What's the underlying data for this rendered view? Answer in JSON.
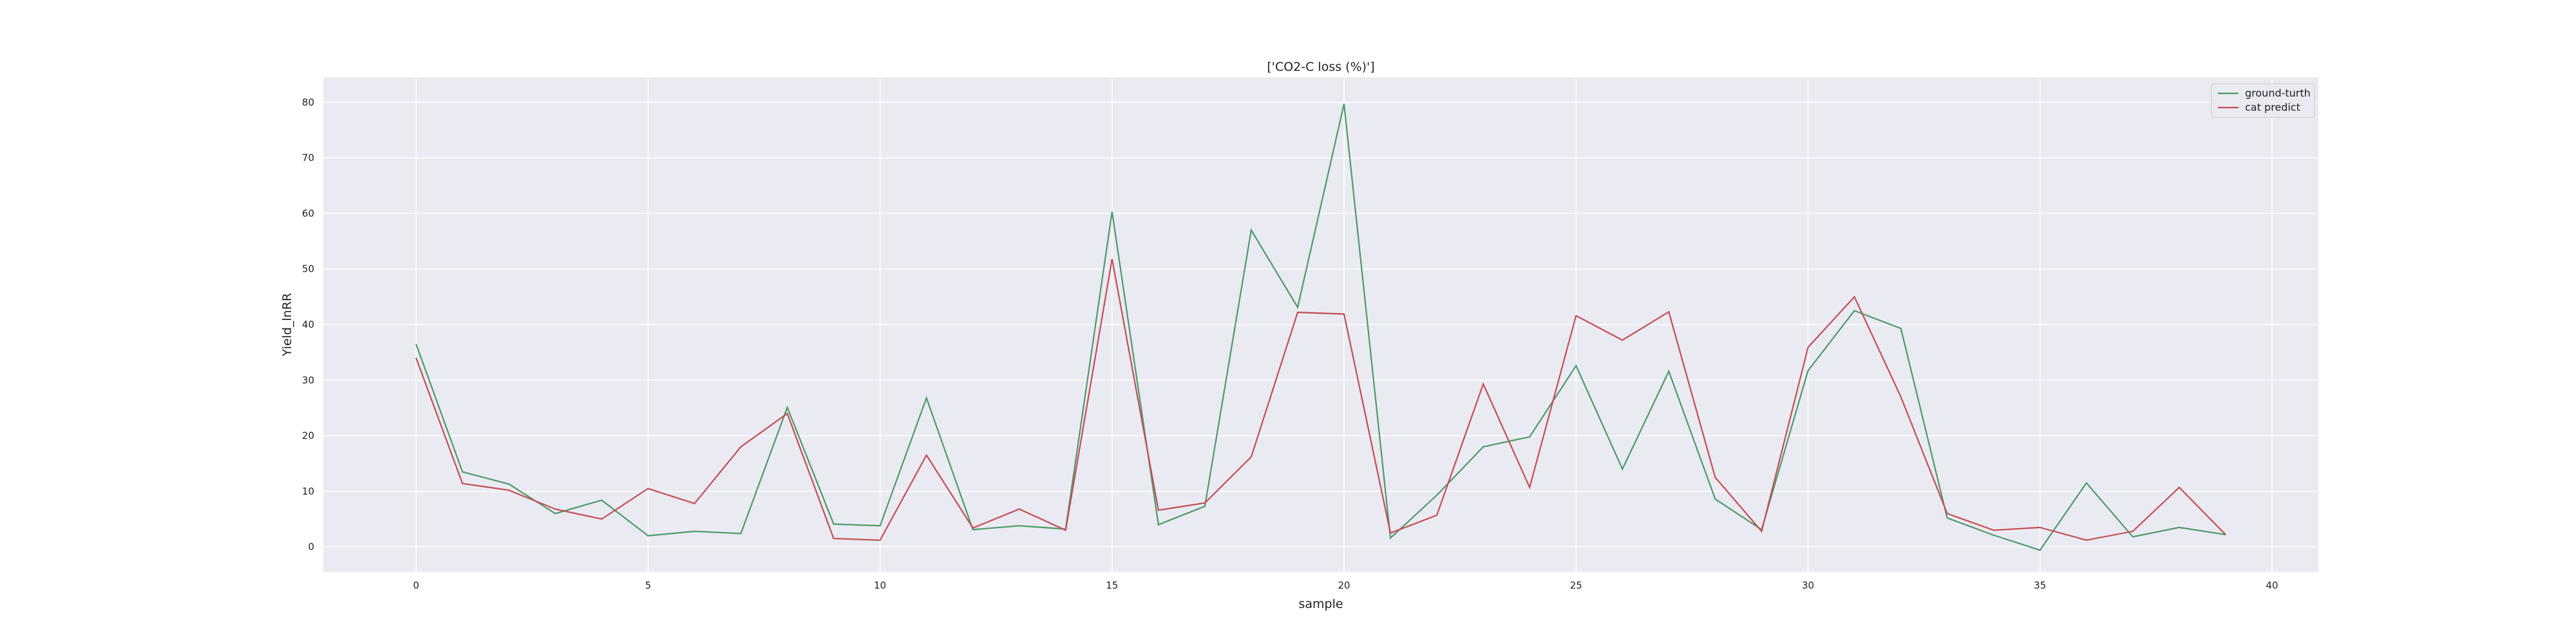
{
  "chart_data": {
    "type": "line",
    "title": "['CO2-C loss (%)']",
    "xlabel": "sample",
    "ylabel": "Yield_lnRR",
    "xlim": [
      -2,
      41
    ],
    "ylim": [
      -4.5,
      84.5
    ],
    "xticks": [
      0,
      5,
      10,
      15,
      20,
      25,
      30,
      35,
      40
    ],
    "yticks": [
      0,
      10,
      20,
      30,
      40,
      50,
      60,
      70,
      80
    ],
    "grid": true,
    "legend_position": "top-right",
    "colors": {
      "background": "#eaeaf2",
      "grid": "#ffffff",
      "ground_truth": "#4c9a6a",
      "cat_predict": "#c44e52"
    },
    "x": [
      0,
      1,
      2,
      3,
      4,
      5,
      6,
      7,
      8,
      9,
      10,
      11,
      12,
      13,
      14,
      15,
      16,
      17,
      18,
      19,
      20,
      21,
      22,
      23,
      24,
      25,
      26,
      27,
      28,
      29,
      30,
      31,
      32,
      33,
      34,
      35,
      36,
      37,
      38,
      39
    ],
    "series": [
      {
        "name": "ground-turth",
        "color": "#4c9a6a",
        "values": [
          36.5,
          13.5,
          11.3,
          6.0,
          8.4,
          2.0,
          2.8,
          2.4,
          25.1,
          4.1,
          3.8,
          26.8,
          3.1,
          3.8,
          3.2,
          60.3,
          4.0,
          7.3,
          57.0,
          43.1,
          79.7,
          1.6,
          9.3,
          18.0,
          19.8,
          32.6,
          14.0,
          31.6,
          8.6,
          3.1,
          31.7,
          42.5,
          39.3,
          5.2,
          2.1,
          -0.6,
          11.5,
          1.8,
          3.5,
          2.2
        ]
      },
      {
        "name": "cat predict",
        "color": "#c44e52",
        "values": [
          34.0,
          11.4,
          10.2,
          6.8,
          5.0,
          10.5,
          7.8,
          18.0,
          24.0,
          1.5,
          1.2,
          16.5,
          3.4,
          6.8,
          3.0,
          51.8,
          6.6,
          7.9,
          16.2,
          42.2,
          41.9,
          2.5,
          5.7,
          29.3,
          10.7,
          41.6,
          37.2,
          42.3,
          12.5,
          2.8,
          35.9,
          45.0,
          27.0,
          6.0,
          3.0,
          3.5,
          1.2,
          2.8,
          10.7,
          2.2
        ]
      }
    ]
  }
}
